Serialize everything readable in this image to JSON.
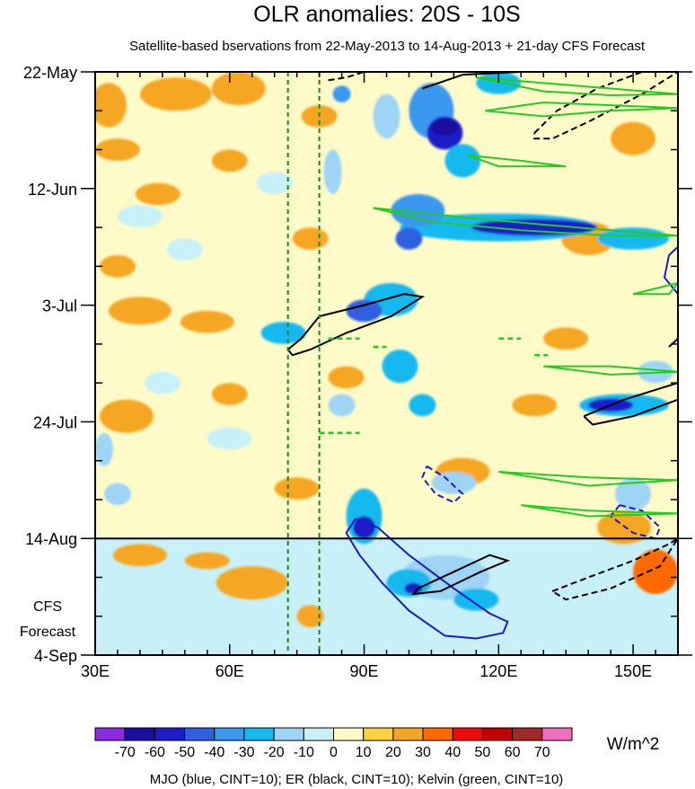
{
  "chart_data": {
    "type": "heatmap",
    "title": "OLR anomalies: 20S - 10S",
    "subtitle": "Satellite-based bservations from 22-May-2013 to 14-Aug-2013 + 21-day CFS Forecast",
    "x_axis": {
      "range_deg": [
        30,
        160
      ],
      "ticks": [
        30,
        60,
        90,
        120,
        150
      ],
      "tick_labels": [
        "30E",
        "60E",
        "90E",
        "120E",
        "150E"
      ]
    },
    "y_axis": {
      "range_days": [
        0,
        105
      ],
      "ticks": [
        0,
        21,
        42,
        63,
        84,
        105
      ],
      "tick_labels": [
        "22-May",
        "12-Jun",
        "3-Jul",
        "24-Jul",
        "14-Aug",
        "4-Sep"
      ],
      "direction": "time increases downward"
    },
    "observation_end_day": 84,
    "forecast_label_line1": "CFS",
    "forecast_label_line2": "Forecast",
    "reference_lines_deg": [
      73,
      80
    ],
    "colorbar": {
      "levels": [
        -70,
        -60,
        -50,
        -40,
        -30,
        -20,
        -10,
        0,
        10,
        20,
        30,
        40,
        50,
        60,
        70
      ],
      "labels": [
        "-70",
        "-60",
        "-50",
        "-40",
        "-30",
        "-20",
        "-10",
        "0",
        "10",
        "20",
        "30",
        "40",
        "50",
        "60",
        "70"
      ],
      "colors": [
        "#8a2be2",
        "#1a0ea0",
        "#1e1ec8",
        "#2f5fe0",
        "#3a98f0",
        "#17b8f0",
        "#9ed4f5",
        "#c8f0f8",
        "#fffbc8",
        "#ffd040",
        "#f5a623",
        "#ff6a00",
        "#f00a0a",
        "#c00000",
        "#a02828",
        "#f070c0"
      ],
      "unit": "W/m^2"
    },
    "footer": "MJO (blue, CINT=10); ER (black, CINT=10); Kelvin (green, CINT=10)",
    "contour_colors": {
      "mjo": "#1a1ac8",
      "er": "#000000",
      "kelvin": "#22cc22",
      "reference": "#1a8a1a",
      "frame": "#000000"
    },
    "anomaly_patches": [
      {
        "lon": 33,
        "day": 6,
        "rx": 4,
        "ry": 4,
        "v": 20
      },
      {
        "lon": 48,
        "day": 4,
        "rx": 8,
        "ry": 3,
        "v": 20
      },
      {
        "lon": 62,
        "day": 3,
        "rx": 6,
        "ry": 3,
        "v": 20
      },
      {
        "lon": 80,
        "day": 8,
        "rx": 4,
        "ry": 2,
        "v": 20
      },
      {
        "lon": 35,
        "day": 14,
        "rx": 5,
        "ry": 2,
        "v": 20
      },
      {
        "lon": 44,
        "day": 22,
        "rx": 5,
        "ry": 2,
        "v": 20
      },
      {
        "lon": 60,
        "day": 16,
        "rx": 4,
        "ry": 2,
        "v": 20
      },
      {
        "lon": 35,
        "day": 35,
        "rx": 4,
        "ry": 2,
        "v": 20
      },
      {
        "lon": 40,
        "day": 43,
        "rx": 7,
        "ry": 2.5,
        "v": 20
      },
      {
        "lon": 55,
        "day": 45,
        "rx": 6,
        "ry": 2,
        "v": 20
      },
      {
        "lon": 78,
        "day": 30,
        "rx": 4,
        "ry": 2,
        "v": 20
      },
      {
        "lon": 37,
        "day": 62,
        "rx": 6,
        "ry": 3,
        "v": 20
      },
      {
        "lon": 60,
        "day": 58,
        "rx": 4,
        "ry": 2,
        "v": 20
      },
      {
        "lon": 86,
        "day": 55,
        "rx": 4,
        "ry": 2,
        "v": 20
      },
      {
        "lon": 75,
        "day": 75,
        "rx": 5,
        "ry": 2,
        "v": 20
      },
      {
        "lon": 112,
        "day": 72,
        "rx": 6,
        "ry": 2.5,
        "v": 20
      },
      {
        "lon": 128,
        "day": 60,
        "rx": 5,
        "ry": 2,
        "v": 20
      },
      {
        "lon": 140,
        "day": 30,
        "rx": 6,
        "ry": 3,
        "v": 20
      },
      {
        "lon": 150,
        "day": 12,
        "rx": 5,
        "ry": 3,
        "v": 20
      },
      {
        "lon": 135,
        "day": 48,
        "rx": 5,
        "ry": 2,
        "v": 20
      },
      {
        "lon": 148,
        "day": 82,
        "rx": 6,
        "ry": 3,
        "v": 20
      },
      {
        "lon": 155,
        "day": 90,
        "rx": 5,
        "ry": 4,
        "v": 30
      },
      {
        "lon": 40,
        "day": 87,
        "rx": 6,
        "ry": 2,
        "v": 20
      },
      {
        "lon": 65,
        "day": 92,
        "rx": 8,
        "ry": 3,
        "v": 20
      },
      {
        "lon": 55,
        "day": 88,
        "rx": 5,
        "ry": 1.5,
        "v": 20
      },
      {
        "lon": 78,
        "day": 98,
        "rx": 3,
        "ry": 2,
        "v": 20
      },
      {
        "lon": 35,
        "day": 76,
        "rx": 3,
        "ry": 2,
        "v": -20
      },
      {
        "lon": 32,
        "day": 68,
        "rx": 2,
        "ry": 3,
        "v": -20
      },
      {
        "lon": 45,
        "day": 56,
        "rx": 4,
        "ry": 2,
        "v": -10
      },
      {
        "lon": 60,
        "day": 66,
        "rx": 5,
        "ry": 2,
        "v": -10
      },
      {
        "lon": 40,
        "day": 26,
        "rx": 5,
        "ry": 2,
        "v": -10
      },
      {
        "lon": 70,
        "day": 20,
        "rx": 4,
        "ry": 2,
        "v": -10
      },
      {
        "lon": 50,
        "day": 32,
        "rx": 4,
        "ry": 2,
        "v": -10
      },
      {
        "lon": 83,
        "day": 18,
        "rx": 2,
        "ry": 4,
        "v": -20
      },
      {
        "lon": 84,
        "day": 90,
        "rx": 4,
        "ry": 2,
        "v": -10
      },
      {
        "lon": 95,
        "day": 8,
        "rx": 3,
        "ry": 4,
        "v": -20
      },
      {
        "lon": 105,
        "day": 7,
        "rx": 5,
        "ry": 5,
        "v": -40
      },
      {
        "lon": 108,
        "day": 11,
        "rx": 4,
        "ry": 3,
        "v": -60
      },
      {
        "lon": 108,
        "day": 10,
        "rx": 3,
        "ry": 1.5,
        "v": -70
      },
      {
        "lon": 120,
        "day": 2,
        "rx": 5,
        "ry": 2,
        "v": -30
      },
      {
        "lon": 112,
        "day": 16,
        "rx": 4,
        "ry": 3,
        "v": -30
      },
      {
        "lon": 85,
        "day": 4,
        "rx": 2,
        "ry": 1.5,
        "v": -40
      },
      {
        "lon": 120,
        "day": 28,
        "rx": 22,
        "ry": 2.5,
        "v": -30
      },
      {
        "lon": 128,
        "day": 28,
        "rx": 14,
        "ry": 1.5,
        "v": -60
      },
      {
        "lon": 102,
        "day": 25,
        "rx": 6,
        "ry": 3,
        "v": -40
      },
      {
        "lon": 100,
        "day": 30,
        "rx": 3,
        "ry": 2,
        "v": -50
      },
      {
        "lon": 150,
        "day": 30,
        "rx": 8,
        "ry": 2,
        "v": -30
      },
      {
        "lon": 96,
        "day": 41,
        "rx": 6,
        "ry": 3,
        "v": -30
      },
      {
        "lon": 90,
        "day": 43,
        "rx": 4,
        "ry": 2,
        "v": -50
      },
      {
        "lon": 72,
        "day": 47,
        "rx": 5,
        "ry": 2,
        "v": -30
      },
      {
        "lon": 98,
        "day": 53,
        "rx": 4,
        "ry": 3,
        "v": -30
      },
      {
        "lon": 103,
        "day": 60,
        "rx": 3,
        "ry": 2,
        "v": -30
      },
      {
        "lon": 85,
        "day": 60,
        "rx": 3,
        "ry": 2,
        "v": -20
      },
      {
        "lon": 148,
        "day": 60,
        "rx": 10,
        "ry": 2,
        "v": -30
      },
      {
        "lon": 145,
        "day": 60,
        "rx": 5,
        "ry": 1.2,
        "v": -60
      },
      {
        "lon": 155,
        "day": 54,
        "rx": 4,
        "ry": 2,
        "v": -20
      },
      {
        "lon": 90,
        "day": 80,
        "rx": 4,
        "ry": 5,
        "v": -30
      },
      {
        "lon": 90,
        "day": 82,
        "rx": 2.5,
        "ry": 2,
        "v": -60
      },
      {
        "lon": 110,
        "day": 74,
        "rx": 5,
        "ry": 2,
        "v": -20
      },
      {
        "lon": 108,
        "day": 91,
        "rx": 10,
        "ry": 4,
        "v": -20
      },
      {
        "lon": 100,
        "day": 92,
        "rx": 5,
        "ry": 2.5,
        "v": -30
      },
      {
        "lon": 101,
        "day": 93,
        "rx": 2,
        "ry": 1,
        "v": -60
      },
      {
        "lon": 115,
        "day": 95,
        "rx": 5,
        "ry": 2,
        "v": -30
      },
      {
        "lon": 150,
        "day": 76,
        "rx": 4,
        "ry": 3,
        "v": -20
      }
    ],
    "contours": {
      "mjo_solid": [
        [
          93,
          82
        ],
        [
          100,
          87
        ],
        [
          110,
          93
        ],
        [
          118,
          97.5
        ],
        [
          122,
          99
        ],
        [
          121,
          101
        ],
        [
          115,
          102
        ],
        [
          108,
          101.5
        ],
        [
          100,
          97
        ],
        [
          94,
          92
        ],
        [
          89,
          87
        ],
        [
          86,
          83
        ],
        [
          88,
          80.5
        ],
        [
          93,
          82
        ]
      ],
      "mjo_dashed": [
        [
          [
            104,
            71
          ],
          [
            108,
            73
          ],
          [
            112,
            76
          ],
          [
            110,
            77.5
          ],
          [
            106,
            76
          ],
          [
            103,
            73
          ],
          [
            104,
            71
          ]
        ],
        [
          [
            147,
            78
          ],
          [
            152,
            79
          ],
          [
            156,
            82
          ],
          [
            155,
            84
          ],
          [
            150,
            83
          ],
          [
            145,
            80
          ],
          [
            147,
            78
          ]
        ]
      ],
      "mjo_edge": [
        [
          158,
          33
        ],
        [
          160,
          31.5
        ],
        [
          160,
          40
        ],
        [
          157,
          37
        ],
        [
          158,
          33
        ]
      ],
      "er_solid": [
        [
          [
            80,
            44
          ],
          [
            90,
            42
          ],
          [
            99,
            40
          ],
          [
            103,
            40.5
          ],
          [
            96,
            44
          ],
          [
            86,
            47
          ],
          [
            78,
            50
          ],
          [
            74,
            51
          ],
          [
            73,
            50
          ],
          [
            76,
            48
          ],
          [
            80,
            44
          ]
        ],
        [
          [
            102,
            93
          ],
          [
            110,
            90
          ],
          [
            118,
            87
          ],
          [
            122,
            88
          ],
          [
            116,
            90
          ],
          [
            107,
            93.5
          ],
          [
            101,
            94
          ],
          [
            102,
            93
          ]
        ],
        [
          [
            139,
            62
          ],
          [
            148,
            59
          ],
          [
            156,
            57
          ],
          [
            160,
            56
          ],
          [
            160,
            59
          ],
          [
            150,
            62
          ],
          [
            141,
            63.5
          ],
          [
            139,
            62
          ]
        ],
        [
          [
            103,
            3
          ],
          [
            112,
            0.5
          ],
          [
            125,
            0
          ]
        ],
        [
          [
            158,
            49.5
          ],
          [
            160,
            48
          ]
        ]
      ],
      "er_dashed": [
        [
          [
            128,
            11
          ],
          [
            133,
            7
          ],
          [
            142,
            3
          ],
          [
            152,
            0
          ],
          [
            160,
            0
          ],
          [
            152,
            4
          ],
          [
            140,
            9
          ],
          [
            132,
            12
          ],
          [
            128,
            12
          ],
          [
            128,
            11
          ]
        ],
        [
          [
            132,
            93.5
          ],
          [
            140,
            91
          ],
          [
            150,
            88
          ],
          [
            158,
            85
          ],
          [
            160,
            84
          ],
          [
            156,
            89
          ],
          [
            145,
            93
          ],
          [
            135,
            95
          ],
          [
            132,
            93.5
          ]
        ],
        [
          [
            82,
            1.5
          ],
          [
            86,
            1
          ],
          [
            90,
            0
          ]
        ]
      ],
      "kelvin_solid": [
        [
          [
            92,
            24.5
          ],
          [
            110,
            26
          ],
          [
            130,
            27.5
          ],
          [
            145,
            28.5
          ],
          [
            160,
            29.5
          ],
          [
            145,
            29.5
          ],
          [
            125,
            28.5
          ],
          [
            105,
            27
          ],
          [
            92,
            24.5
          ]
        ],
        [
          [
            115,
            1
          ],
          [
            130,
            2
          ],
          [
            145,
            3
          ],
          [
            160,
            4
          ],
          [
            145,
            4.2
          ],
          [
            130,
            3.5
          ],
          [
            115,
            1
          ]
        ],
        [
          [
            117,
            7
          ],
          [
            130,
            5.5
          ],
          [
            145,
            6
          ],
          [
            160,
            6.5
          ],
          [
            145,
            7
          ],
          [
            130,
            8
          ],
          [
            117,
            7
          ]
        ],
        [
          [
            113,
            15
          ],
          [
            125,
            16
          ],
          [
            135,
            17
          ],
          [
            120,
            17
          ],
          [
            113,
            15
          ]
        ],
        [
          [
            130,
            53
          ],
          [
            145,
            53
          ],
          [
            160,
            54
          ],
          [
            145,
            54.5
          ],
          [
            130,
            53
          ]
        ],
        [
          [
            120,
            72
          ],
          [
            140,
            73
          ],
          [
            160,
            73.5
          ],
          [
            140,
            74.5
          ],
          [
            120,
            72
          ]
        ],
        [
          [
            125,
            78
          ],
          [
            140,
            79
          ],
          [
            160,
            79.5
          ],
          [
            140,
            80
          ],
          [
            125,
            78
          ]
        ],
        [
          [
            150,
            40
          ],
          [
            155,
            39
          ],
          [
            160,
            38
          ],
          [
            158,
            40
          ],
          [
            150,
            40
          ]
        ]
      ],
      "kelvin_dashes": [
        [
          [
            82,
            48
          ],
          [
            89,
            48
          ]
        ],
        [
          [
            92,
            49.5
          ],
          [
            95,
            49.5
          ]
        ],
        [
          [
            120,
            48
          ],
          [
            125,
            48
          ]
        ],
        [
          [
            128,
            51
          ],
          [
            131,
            51
          ]
        ],
        [
          [
            80,
            65
          ],
          [
            89,
            65
          ]
        ]
      ]
    }
  }
}
